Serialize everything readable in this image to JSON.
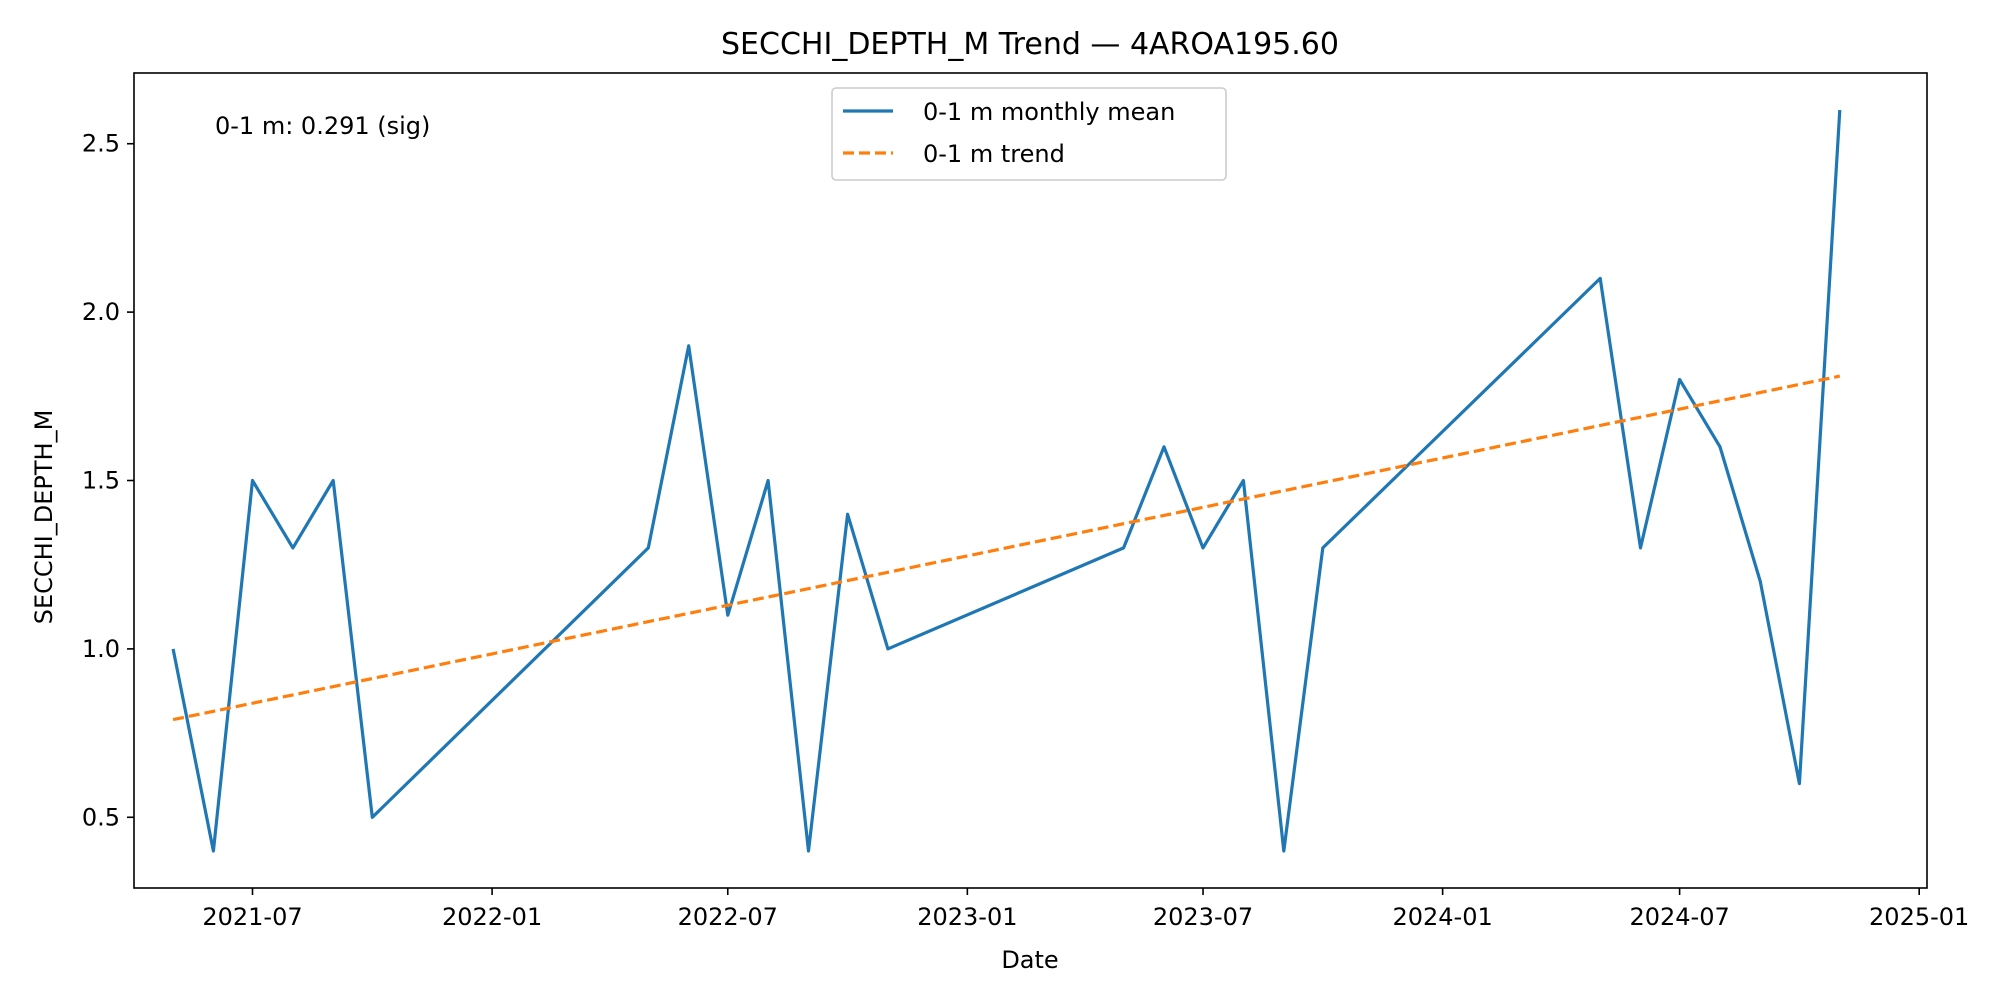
{
  "chart_data": {
    "type": "line",
    "title": "SECCHI_DEPTH_M Trend — 4AROA195.60",
    "xlabel": "Date",
    "ylabel": "SECCHI_DEPTH_M",
    "x_axis_type": "date",
    "xlim": [
      "2021-04-01",
      "2025-01-07"
    ],
    "ylim": [
      0.29,
      2.71
    ],
    "x_ticks": [
      "2021-07",
      "2022-01",
      "2022-07",
      "2023-01",
      "2023-07",
      "2024-01",
      "2024-07",
      "2025-01"
    ],
    "y_ticks": [
      "0.5",
      "1.0",
      "1.5",
      "2.0",
      "2.5"
    ],
    "y_tick_values": [
      0.5,
      1.0,
      1.5,
      2.0,
      2.5
    ],
    "grid": false,
    "legend_position": "top-center",
    "annotation": "0-1 m: 0.291 (sig)",
    "series": [
      {
        "name": "0-1 m monthly mean",
        "style": "solid",
        "color": "#1f77b4",
        "points": [
          [
            "2021-05-01",
            1.0
          ],
          [
            "2021-06-01",
            0.4
          ],
          [
            "2021-07-01",
            1.5
          ],
          [
            "2021-08-01",
            1.3
          ],
          [
            "2021-09-01",
            1.5
          ],
          [
            "2021-10-01",
            0.5
          ],
          [
            "2022-05-01",
            1.3
          ],
          [
            "2022-06-01",
            1.9
          ],
          [
            "2022-07-01",
            1.1
          ],
          [
            "2022-08-01",
            1.5
          ],
          [
            "2022-09-01",
            0.4
          ],
          [
            "2022-10-01",
            1.4
          ],
          [
            "2022-11-01",
            1.0
          ],
          [
            "2023-05-01",
            1.3
          ],
          [
            "2023-06-01",
            1.6
          ],
          [
            "2023-07-01",
            1.3
          ],
          [
            "2023-08-01",
            1.5
          ],
          [
            "2023-09-01",
            0.4
          ],
          [
            "2023-10-01",
            1.3
          ],
          [
            "2024-05-01",
            2.1
          ],
          [
            "2024-06-01",
            1.3
          ],
          [
            "2024-07-01",
            1.8
          ],
          [
            "2024-08-01",
            1.6
          ],
          [
            "2024-09-01",
            1.2
          ],
          [
            "2024-10-01",
            0.6
          ],
          [
            "2024-11-01",
            2.6
          ]
        ]
      },
      {
        "name": "0-1 m trend",
        "style": "dashed",
        "color": "#ff7f0e",
        "points": [
          [
            "2021-05-01",
            0.79
          ],
          [
            "2024-11-01",
            1.81
          ]
        ]
      }
    ]
  }
}
